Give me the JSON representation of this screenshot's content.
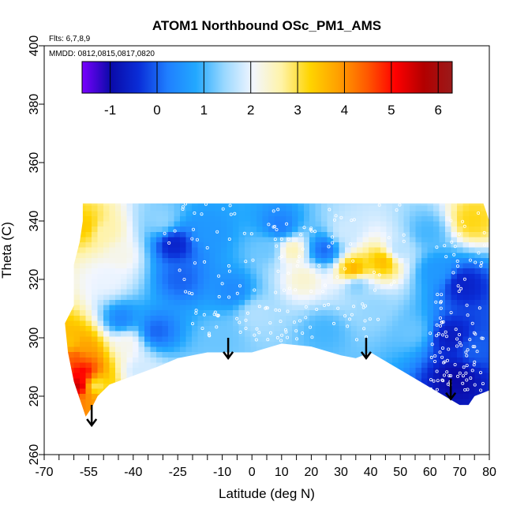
{
  "chart_data": {
    "type": "heatmap",
    "title": "ATOM1 Northbound OSc_PM1_AMS",
    "annotations": {
      "flights": "Flts: 6,7,8,9",
      "dates": "MMDD: 0812,0815,0817,0820"
    },
    "xlabel": "Latitude (deg N)",
    "ylabel": "Theta (C)",
    "xlim": [
      -70,
      80
    ],
    "ylim": [
      260,
      400
    ],
    "x_ticks": [
      -70,
      -55,
      -40,
      -25,
      -10,
      0,
      10,
      20,
      30,
      40,
      50,
      60,
      70,
      80
    ],
    "x_ticks_minor": [
      -65,
      -60,
      -50,
      -45,
      -35,
      -30,
      -20,
      -15,
      -5,
      5,
      15,
      25,
      35,
      45,
      55,
      65,
      75
    ],
    "y_ticks": [
      260,
      280,
      300,
      320,
      340,
      360,
      380,
      400
    ],
    "colorbar": {
      "range": [
        -1.6,
        6.3
      ],
      "ticks": [
        -1,
        0,
        1,
        2,
        3,
        4,
        5,
        6
      ],
      "colors": [
        "#7a00ff",
        "#0a0aa8",
        "#0a2ed8",
        "#1f7fff",
        "#22a8ff",
        "#9ad8ff",
        "#f2f6ff",
        "#fff3a8",
        "#ffd400",
        "#ffa000",
        "#ff5a00",
        "#ff0000",
        "#b20000",
        "#9a1a1a"
      ]
    },
    "grid": false,
    "coverage_bottom": [
      [
        -56,
        273
      ],
      [
        -54,
        276
      ],
      [
        -52,
        280
      ],
      [
        -48,
        284
      ],
      [
        -40,
        287
      ],
      [
        -32,
        290
      ],
      [
        -25,
        293
      ],
      [
        -15,
        295
      ],
      [
        -8,
        295
      ],
      [
        0,
        295
      ],
      [
        10,
        298
      ],
      [
        20,
        297
      ],
      [
        30,
        294
      ],
      [
        35,
        293
      ],
      [
        40,
        295
      ],
      [
        45,
        292
      ],
      [
        55,
        286
      ],
      [
        65,
        280
      ],
      [
        70,
        277
      ],
      [
        73,
        277
      ],
      [
        75,
        280
      ],
      [
        80,
        282
      ]
    ],
    "coverage_top": 346,
    "coverage_left": [
      [
        -56,
        273
      ],
      [
        -60,
        285
      ],
      [
        -62,
        295
      ],
      [
        -63,
        305
      ],
      [
        -60,
        311
      ],
      [
        -60,
        325
      ],
      [
        -58,
        333
      ],
      [
        -57,
        340
      ],
      [
        -57,
        346
      ]
    ],
    "coverage_right": [
      [
        80,
        282
      ],
      [
        80,
        340
      ],
      [
        78,
        346
      ]
    ],
    "features": [
      {
        "x": -57,
        "y": 288,
        "value": 5.2
      },
      {
        "x": -58,
        "y": 283,
        "value": 5.8
      },
      {
        "x": -59,
        "y": 293,
        "value": 4.6
      },
      {
        "x": -61,
        "y": 298,
        "value": 3.4
      },
      {
        "x": -57,
        "y": 296,
        "value": 3.8
      },
      {
        "x": -55,
        "y": 279,
        "value": 4.0
      },
      {
        "x": -53,
        "y": 283,
        "value": 2.6
      },
      {
        "x": -56,
        "y": 338,
        "value": 3.4
      },
      {
        "x": -50,
        "y": 336,
        "value": 2.6
      },
      {
        "x": -44,
        "y": 328,
        "value": 2.2
      },
      {
        "x": -48,
        "y": 320,
        "value": 2.0
      },
      {
        "x": -42,
        "y": 298,
        "value": 2.2
      },
      {
        "x": -44,
        "y": 306,
        "value": 0.3
      },
      {
        "x": -32,
        "y": 302,
        "value": 0.0
      },
      {
        "x": -26,
        "y": 332,
        "value": -0.6
      },
      {
        "x": -24,
        "y": 320,
        "value": 0.0
      },
      {
        "x": -14,
        "y": 336,
        "value": 0.6
      },
      {
        "x": -6,
        "y": 316,
        "value": 0.4
      },
      {
        "x": -10,
        "y": 300,
        "value": 1.2
      },
      {
        "x": 2,
        "y": 308,
        "value": 1.6
      },
      {
        "x": 6,
        "y": 330,
        "value": 1.2
      },
      {
        "x": 14,
        "y": 330,
        "value": 2.6
      },
      {
        "x": 18,
        "y": 320,
        "value": 2.4
      },
      {
        "x": 10,
        "y": 338,
        "value": 0.2
      },
      {
        "x": 25,
        "y": 330,
        "value": 0.0
      },
      {
        "x": 32,
        "y": 336,
        "value": 1.8
      },
      {
        "x": 35,
        "y": 323,
        "value": 3.8
      },
      {
        "x": 36,
        "y": 318,
        "value": 1.2
      },
      {
        "x": 45,
        "y": 326,
        "value": 3.6
      },
      {
        "x": 50,
        "y": 330,
        "value": 1.6
      },
      {
        "x": 55,
        "y": 302,
        "value": 1.2
      },
      {
        "x": 63,
        "y": 323,
        "value": 0.6
      },
      {
        "x": 68,
        "y": 300,
        "value": -0.7
      },
      {
        "x": 72,
        "y": 318,
        "value": -0.6
      },
      {
        "x": 75,
        "y": 340,
        "value": 3.2
      },
      {
        "x": 70,
        "y": 286,
        "value": -1.0
      },
      {
        "x": 76,
        "y": 296,
        "value": 0.0
      },
      {
        "x": -38,
        "y": 288,
        "value": 1.8
      },
      {
        "x": 25,
        "y": 302,
        "value": 1.0
      },
      {
        "x": 42,
        "y": 310,
        "value": 1.4
      },
      {
        "x": 60,
        "y": 336,
        "value": 1.0
      },
      {
        "x": -30,
        "y": 340,
        "value": 1.4
      }
    ],
    "flight_track_samples": "white open circles along flight tracks",
    "arrows": [
      {
        "x": -54,
        "y_start": 277,
        "y_end": 270
      },
      {
        "x": -8,
        "y_start": 300,
        "y_end": 293
      },
      {
        "x": 38.5,
        "y_start": 300,
        "y_end": 293
      },
      {
        "x": 67,
        "y_start": 286,
        "y_end": 279
      }
    ]
  }
}
